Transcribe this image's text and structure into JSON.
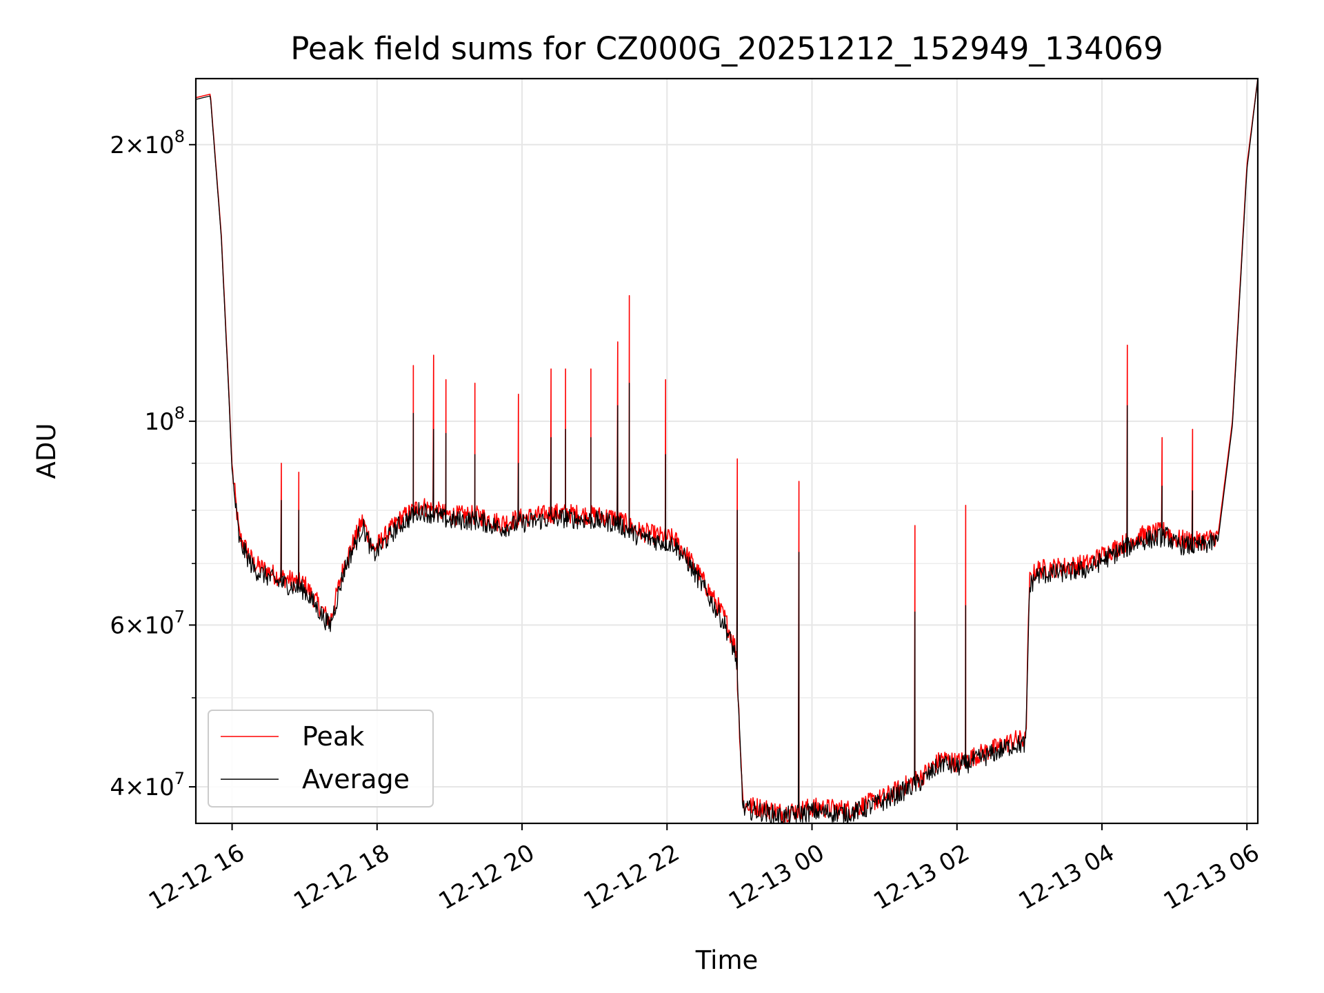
{
  "chart_data": {
    "type": "line",
    "title": "Peak field sums for CZ000G_20251212_152949_134069",
    "xlabel": "Time",
    "ylabel": "ADU",
    "y_scale": "log",
    "ylim": [
      36500000,
      236000000
    ],
    "xlim_hours": [
      15.5,
      30.15
    ],
    "x_ticks": [
      {
        "hour": 16,
        "label": "12-12 16"
      },
      {
        "hour": 18,
        "label": "12-12 18"
      },
      {
        "hour": 20,
        "label": "12-12 20"
      },
      {
        "hour": 22,
        "label": "12-12 22"
      },
      {
        "hour": 24,
        "label": "12-13 00"
      },
      {
        "hour": 26,
        "label": "12-13 02"
      },
      {
        "hour": 28,
        "label": "12-13 04"
      },
      {
        "hour": 30,
        "label": "12-13 06"
      }
    ],
    "y_ticks": [
      {
        "value": 40000000,
        "base": "4",
        "exp": "7"
      },
      {
        "value": 60000000,
        "base": "6",
        "exp": "7"
      },
      {
        "value": 100000000,
        "base": "",
        "exp": "8"
      },
      {
        "value": 200000000,
        "base": "2",
        "exp": "8"
      }
    ],
    "y_minor_ticks": [
      50000000,
      70000000,
      80000000,
      90000000
    ],
    "grid": true,
    "legend": {
      "position": "lower-left",
      "entries": [
        "Peak",
        "Average"
      ]
    },
    "series": [
      {
        "name": "Peak",
        "color": "#ff0000",
        "x": [
          15.5,
          15.7,
          15.85,
          15.95,
          16.0,
          16.1,
          16.3,
          16.6,
          17.0,
          17.35,
          17.55,
          17.8,
          17.95,
          18.3,
          18.6,
          19.0,
          19.4,
          19.7,
          20.0,
          20.5,
          21.0,
          21.3,
          21.6,
          21.9,
          22.1,
          22.3,
          22.5,
          22.8,
          22.95,
          23.05,
          23.3,
          23.6,
          24.0,
          24.5,
          24.7,
          25.0,
          25.5,
          25.8,
          26.0,
          26.5,
          26.8,
          26.95,
          27.0,
          27.1,
          27.5,
          27.8,
          28.0,
          28.5,
          28.9,
          29.0,
          29.3,
          29.45,
          29.6,
          29.8,
          30.0,
          30.15
        ],
        "values": [
          225000000,
          227000000,
          160000000,
          110000000,
          89000000,
          75000000,
          70000000,
          68000000,
          66500000,
          60500000,
          70000000,
          78000000,
          72500000,
          78000000,
          81000000,
          79000000,
          79000000,
          77500000,
          78500000,
          79500000,
          79000000,
          78500000,
          76000000,
          75000000,
          74500000,
          71000000,
          67000000,
          61000000,
          56500000,
          38200000,
          38000000,
          37500000,
          38000000,
          37800000,
          38200000,
          39000000,
          41000000,
          43000000,
          42500000,
          44000000,
          45000000,
          45000000,
          67000000,
          69000000,
          69500000,
          70000000,
          71500000,
          75000000,
          76000000,
          74500000,
          74000000,
          74500000,
          75000000,
          100000000,
          190000000,
          236000000
        ]
      },
      {
        "name": "Average",
        "color": "#000000",
        "x": [
          15.5,
          15.7,
          15.85,
          15.95,
          16.0,
          16.1,
          16.3,
          16.6,
          17.0,
          17.35,
          17.55,
          17.8,
          17.95,
          18.3,
          18.6,
          19.0,
          19.4,
          19.7,
          20.0,
          20.5,
          21.0,
          21.3,
          21.6,
          21.9,
          22.1,
          22.3,
          22.5,
          22.8,
          22.95,
          23.05,
          23.3,
          23.6,
          24.0,
          24.5,
          24.7,
          25.0,
          25.5,
          25.8,
          26.0,
          26.5,
          26.8,
          26.95,
          27.0,
          27.1,
          27.5,
          27.8,
          28.0,
          28.5,
          28.9,
          29.0,
          29.3,
          29.45,
          29.6,
          29.8,
          30.0,
          30.15
        ],
        "values": [
          224000000,
          226000000,
          159000000,
          109000000,
          88000000,
          74000000,
          69000000,
          67000000,
          65500000,
          59800000,
          69000000,
          77000000,
          71500000,
          77000000,
          80000000,
          78000000,
          78000000,
          76500000,
          77500000,
          78500000,
          78000000,
          77500000,
          75000000,
          74000000,
          73500000,
          70000000,
          66000000,
          60000000,
          55500000,
          37800000,
          37600000,
          37100000,
          37600000,
          37400000,
          37800000,
          38600000,
          40500000,
          42500000,
          42000000,
          43500000,
          44500000,
          44500000,
          66000000,
          68000000,
          68500000,
          69000000,
          70500000,
          74000000,
          75000000,
          73500000,
          73000000,
          73500000,
          74000000,
          99000000,
          188000000,
          236000000
        ]
      }
    ],
    "spikes": [
      {
        "x": 16.68,
        "peak": 90000000,
        "avg": 82000000
      },
      {
        "x": 16.92,
        "peak": 88000000,
        "avg": 80000000
      },
      {
        "x": 18.5,
        "peak": 115000000,
        "avg": 102000000
      },
      {
        "x": 18.78,
        "peak": 118000000,
        "avg": 98000000
      },
      {
        "x": 18.95,
        "peak": 111000000,
        "avg": 97000000
      },
      {
        "x": 19.35,
        "peak": 110000000,
        "avg": 92000000
      },
      {
        "x": 19.95,
        "peak": 107000000,
        "avg": 90000000
      },
      {
        "x": 20.4,
        "peak": 114000000,
        "avg": 96000000
      },
      {
        "x": 20.6,
        "peak": 114000000,
        "avg": 98000000
      },
      {
        "x": 20.95,
        "peak": 114000000,
        "avg": 96000000
      },
      {
        "x": 21.32,
        "peak": 122000000,
        "avg": 104000000
      },
      {
        "x": 21.48,
        "peak": 137000000,
        "avg": 110000000
      },
      {
        "x": 21.98,
        "peak": 111000000,
        "avg": 92000000
      },
      {
        "x": 22.97,
        "peak": 91000000,
        "avg": 80000000
      },
      {
        "x": 23.82,
        "peak": 86000000,
        "avg": 72000000
      },
      {
        "x": 25.42,
        "peak": 77000000,
        "avg": 62000000
      },
      {
        "x": 26.12,
        "peak": 81000000,
        "avg": 63000000
      },
      {
        "x": 28.35,
        "peak": 121000000,
        "avg": 104000000
      },
      {
        "x": 28.83,
        "peak": 96000000,
        "avg": 85000000
      },
      {
        "x": 29.25,
        "peak": 98000000,
        "avg": 84000000
      }
    ]
  }
}
